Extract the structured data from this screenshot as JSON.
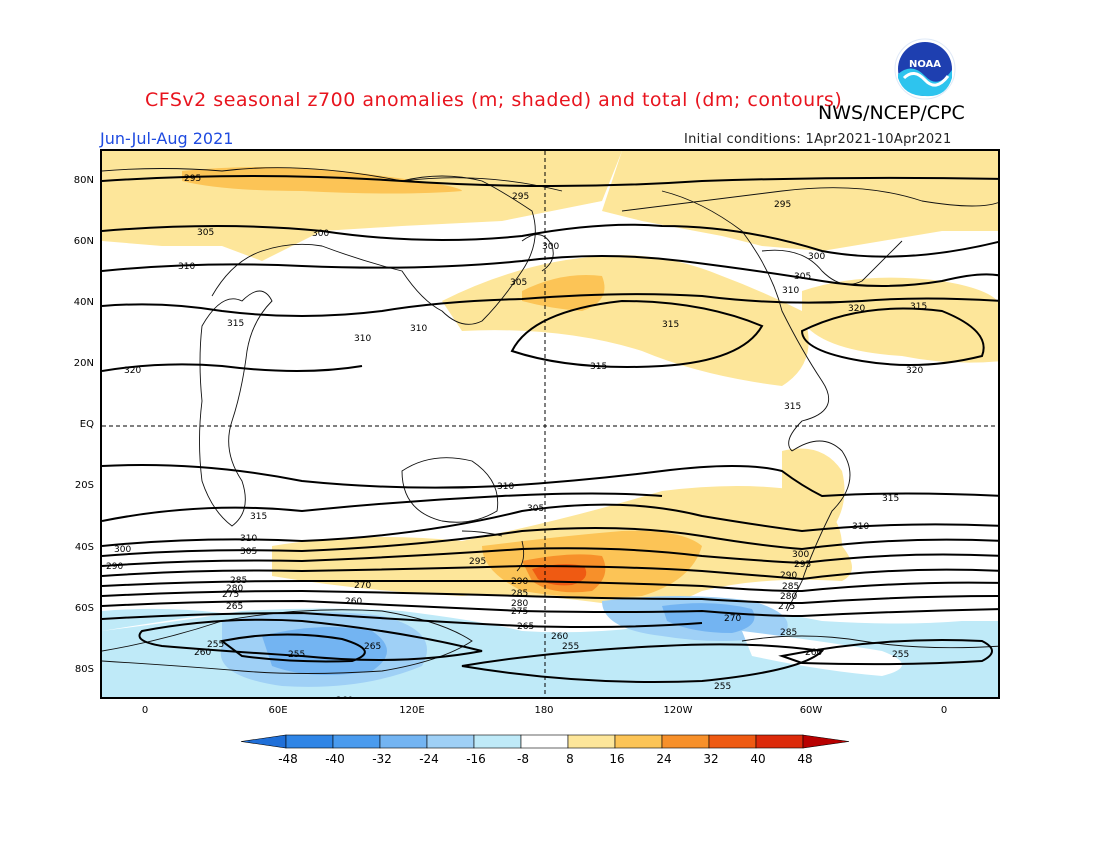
{
  "header": {
    "title": "CFSv2 seasonal z700 anomalies (m; shaded) and total (dm; contours)",
    "agency": "NWS/NCEP/CPC",
    "season": "Jun-Jul-Aug 2021",
    "initial_conditions": "Initial conditions: 1Apr2021-10Apr2021",
    "logo_text": "NOAA"
  },
  "axes": {
    "lat_labels": [
      "80N",
      "60N",
      "40N",
      "20N",
      "EQ",
      "20S",
      "40S",
      "60S",
      "80S"
    ],
    "lon_labels": [
      "0",
      "60E",
      "120E",
      "180",
      "120W",
      "60W",
      "0"
    ]
  },
  "colorbar": {
    "ticks": [
      "-48",
      "-40",
      "-32",
      "-24",
      "-16",
      "-8",
      "8",
      "16",
      "24",
      "32",
      "40",
      "48"
    ],
    "colors": [
      "#1f6fd8",
      "#2f85e6",
      "#4a9bee",
      "#73b4f2",
      "#9fd0f6",
      "#bfeaf8",
      "#ffffff",
      "#fde69a",
      "#fcc456",
      "#f7902a",
      "#ef5a12",
      "#dc2a0a",
      "#b80000"
    ]
  },
  "contour_labels": [
    {
      "text": "295"
    },
    {
      "text": "295"
    },
    {
      "text": "295"
    },
    {
      "text": "300"
    },
    {
      "text": "300"
    },
    {
      "text": "300"
    },
    {
      "text": "305"
    },
    {
      "text": "305"
    },
    {
      "text": "305"
    },
    {
      "text": "310"
    },
    {
      "text": "310"
    },
    {
      "text": "310"
    },
    {
      "text": "310"
    },
    {
      "text": "315"
    },
    {
      "text": "315"
    },
    {
      "text": "315"
    },
    {
      "text": "315"
    },
    {
      "text": "320"
    },
    {
      "text": "320"
    },
    {
      "text": "320"
    },
    {
      "text": "315"
    },
    {
      "text": "310"
    },
    {
      "text": "305"
    },
    {
      "text": "315"
    },
    {
      "text": "310"
    },
    {
      "text": "305"
    },
    {
      "text": "300"
    },
    {
      "text": "290"
    },
    {
      "text": "285"
    },
    {
      "text": "280"
    },
    {
      "text": "275"
    },
    {
      "text": "265"
    },
    {
      "text": "260"
    },
    {
      "text": "270"
    },
    {
      "text": "295"
    },
    {
      "text": "290"
    },
    {
      "text": "285"
    },
    {
      "text": "280"
    },
    {
      "text": "275"
    },
    {
      "text": "265"
    },
    {
      "text": "260"
    },
    {
      "text": "255"
    },
    {
      "text": "300"
    },
    {
      "text": "295"
    },
    {
      "text": "290"
    },
    {
      "text": "285"
    },
    {
      "text": "280"
    },
    {
      "text": "275"
    },
    {
      "text": "270"
    },
    {
      "text": "285"
    },
    {
      "text": "260"
    },
    {
      "text": "255"
    },
    {
      "text": "255"
    },
    {
      "text": "255"
    },
    {
      "text": "265"
    },
    {
      "text": "260"
    },
    {
      "text": "255"
    },
    {
      "text": "260"
    },
    {
      "text": "305"
    },
    {
      "text": "300"
    },
    {
      "text": "310"
    },
    {
      "text": "305"
    },
    {
      "text": "310"
    },
    {
      "text": "315"
    },
    {
      "text": "320"
    }
  ]
}
